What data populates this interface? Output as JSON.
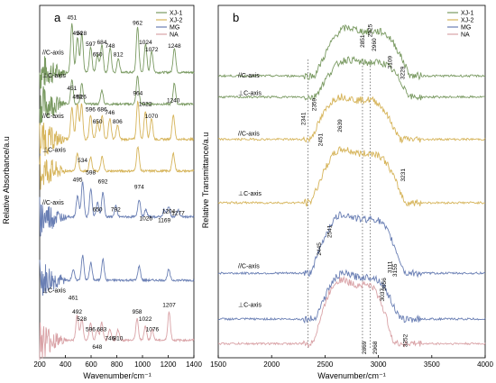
{
  "colors": {
    "XJ-1": "#7a9a62",
    "XJ-2": "#d6b45a",
    "MG": "#6a7fb4",
    "NA": "#d9a2a6"
  },
  "chart_data": [
    {
      "panel": "a",
      "type": "line",
      "xlabel": "Wavenumber/cm⁻¹",
      "ylabel": "Relative Absorbance/a.u",
      "xlim": [
        200,
        1400
      ],
      "xticks": [
        200,
        400,
        600,
        800,
        1000,
        1200,
        1400
      ],
      "legend": {
        "placement": "top-right",
        "entries": [
          "XJ-1",
          "XJ-2",
          "MG",
          "NA"
        ]
      },
      "orientation_labels": [
        {
          "text": "//C-axis",
          "y_level": 0.86
        },
        {
          "text": "⊥C-axis",
          "y_level": 0.795
        },
        {
          "text": "//C-axis",
          "y_level": 0.68
        },
        {
          "text": "⊥C-axis",
          "y_level": 0.585
        },
        {
          "text": "//C-axis",
          "y_level": 0.435
        },
        {
          "text": "⊥C-axis",
          "y_level": 0.185
        }
      ],
      "series": [
        {
          "key": "XJ-1",
          "orientation": "//C-axis",
          "base": 0.81,
          "peaks": [
            [
              451,
              0.14
            ],
            [
              494,
              0.1
            ],
            [
              528,
              0.11
            ],
            [
              597,
              0.07
            ],
            [
              650,
              0.05
            ],
            [
              684,
              0.08
            ],
            [
              748,
              0.07
            ],
            [
              812,
              0.04
            ],
            [
              962,
              0.13
            ],
            [
              1024,
              0.08
            ],
            [
              1072,
              0.06
            ],
            [
              1248,
              0.07
            ]
          ]
        },
        {
          "key": "XJ-1",
          "orientation": "⊥C-axis",
          "base": 0.72,
          "peaks": [
            [
              451,
              0.07
            ],
            [
              528,
              0.06
            ],
            [
              684,
              0.04
            ],
            [
              962,
              0.08
            ],
            [
              1248,
              0.06
            ]
          ]
        },
        {
          "key": "XJ-2",
          "orientation": "//C-axis",
          "base": 0.62,
          "peaks": [
            [
              451,
              0.09
            ],
            [
              493,
              0.1
            ],
            [
              526,
              0.1
            ],
            [
              596,
              0.07
            ],
            [
              650,
              0.05
            ],
            [
              686,
              0.07
            ],
            [
              746,
              0.06
            ],
            [
              806,
              0.04
            ],
            [
              964,
              0.11
            ],
            [
              1022,
              0.08
            ],
            [
              1070,
              0.06
            ],
            [
              1240,
              0.07
            ]
          ]
        },
        {
          "key": "XJ-2",
          "orientation": "⊥C-axis",
          "base": 0.53,
          "peaks": [
            [
              493,
              0.05
            ],
            [
              596,
              0.04
            ],
            [
              686,
              0.04
            ],
            [
              964,
              0.07
            ],
            [
              1240,
              0.05
            ]
          ]
        },
        {
          "key": "MG",
          "orientation": "//C-axis",
          "base": 0.4,
          "peaks": [
            [
              495,
              0.06
            ],
            [
              534,
              0.1
            ],
            [
              598,
              0.08
            ],
            [
              650,
              0.04
            ],
            [
              692,
              0.07
            ],
            [
              792,
              0.03
            ],
            [
              974,
              0.05
            ],
            [
              1026,
              0.02
            ],
            [
              1169,
              0.02
            ],
            [
              1204,
              0.03
            ],
            [
              1277,
              0.02
            ]
          ]
        },
        {
          "key": "MG",
          "orientation": "⊥C-axis",
          "base": 0.22,
          "peaks": [
            [
              461,
              0.03
            ],
            [
              534,
              0.07
            ],
            [
              598,
              0.05
            ],
            [
              692,
              0.06
            ],
            [
              974,
              0.04
            ],
            [
              1204,
              0.03
            ]
          ]
        },
        {
          "key": "NA",
          "orientation": "",
          "base": 0.05,
          "peaks": [
            [
              492,
              0.07
            ],
            [
              528,
              0.06
            ],
            [
              596,
              0.05
            ],
            [
              648,
              0.03
            ],
            [
              683,
              0.05
            ],
            [
              746,
              0.03
            ],
            [
              810,
              0.03
            ],
            [
              958,
              0.06
            ],
            [
              1022,
              0.04
            ],
            [
              1076,
              0.03
            ],
            [
              1207,
              0.08
            ]
          ]
        }
      ],
      "annotations": [
        {
          "text": "451",
          "x": 451,
          "y_level": 0.96
        },
        {
          "text": "494",
          "x": 494,
          "y_level": 0.915
        },
        {
          "text": "528",
          "x": 528,
          "y_level": 0.915
        },
        {
          "text": "597",
          "x": 597,
          "y_level": 0.885
        },
        {
          "text": "650",
          "x": 650,
          "y_level": 0.855
        },
        {
          "text": "684",
          "x": 684,
          "y_level": 0.89
        },
        {
          "text": "748",
          "x": 748,
          "y_level": 0.88
        },
        {
          "text": "812",
          "x": 812,
          "y_level": 0.855
        },
        {
          "text": "962",
          "x": 962,
          "y_level": 0.945
        },
        {
          "text": "1024",
          "x": 1024,
          "y_level": 0.89
        },
        {
          "text": "1072",
          "x": 1072,
          "y_level": 0.87
        },
        {
          "text": "1248",
          "x": 1248,
          "y_level": 0.88
        },
        {
          "text": "451",
          "x": 451,
          "y_level": 0.76
        },
        {
          "text": "493",
          "x": 493,
          "y_level": 0.735
        },
        {
          "text": "526",
          "x": 526,
          "y_level": 0.735
        },
        {
          "text": "596",
          "x": 596,
          "y_level": 0.7
        },
        {
          "text": "650",
          "x": 650,
          "y_level": 0.665
        },
        {
          "text": "686",
          "x": 686,
          "y_level": 0.7
        },
        {
          "text": "746",
          "x": 746,
          "y_level": 0.69
        },
        {
          "text": "806",
          "x": 806,
          "y_level": 0.665
        },
        {
          "text": "964",
          "x": 964,
          "y_level": 0.745
        },
        {
          "text": "1022",
          "x": 1022,
          "y_level": 0.715
        },
        {
          "text": "1070",
          "x": 1070,
          "y_level": 0.68
        },
        {
          "text": "1240",
          "x": 1240,
          "y_level": 0.725
        },
        {
          "text": "534",
          "x": 534,
          "y_level": 0.555
        },
        {
          "text": "598",
          "x": 598,
          "y_level": 0.52
        },
        {
          "text": "495",
          "x": 495,
          "y_level": 0.5
        },
        {
          "text": "692",
          "x": 692,
          "y_level": 0.495
        },
        {
          "text": "650",
          "x": 650,
          "y_level": 0.415
        },
        {
          "text": "792",
          "x": 792,
          "y_level": 0.415
        },
        {
          "text": "974",
          "x": 974,
          "y_level": 0.48
        },
        {
          "text": "1026",
          "x": 1026,
          "y_level": 0.39
        },
        {
          "text": "1169",
          "x": 1169,
          "y_level": 0.385
        },
        {
          "text": "1204",
          "x": 1204,
          "y_level": 0.41
        },
        {
          "text": "1277",
          "x": 1277,
          "y_level": 0.405
        },
        {
          "text": "461",
          "x": 461,
          "y_level": 0.165
        },
        {
          "text": "492",
          "x": 492,
          "y_level": 0.125
        },
        {
          "text": "528",
          "x": 528,
          "y_level": 0.105
        },
        {
          "text": "596",
          "x": 596,
          "y_level": 0.075
        },
        {
          "text": "683",
          "x": 683,
          "y_level": 0.075
        },
        {
          "text": "648",
          "x": 648,
          "y_level": 0.025
        },
        {
          "text": "746",
          "x": 746,
          "y_level": 0.05
        },
        {
          "text": "810",
          "x": 810,
          "y_level": 0.05
        },
        {
          "text": "958",
          "x": 958,
          "y_level": 0.125
        },
        {
          "text": "1022",
          "x": 1022,
          "y_level": 0.105
        },
        {
          "text": "1076",
          "x": 1076,
          "y_level": 0.075
        },
        {
          "text": "1207",
          "x": 1207,
          "y_level": 0.145
        }
      ]
    },
    {
      "panel": "b",
      "type": "line",
      "xlabel": "Wavenumber/cm⁻¹",
      "ylabel": "Relative Transmittance/a.u",
      "xlim": [
        1500,
        4000
      ],
      "xticks": [
        1500,
        2000,
        2500,
        3000,
        3500,
        4000
      ],
      "legend": {
        "placement": "top-right",
        "entries": [
          "XJ-1",
          "XJ-2",
          "MG",
          "NA"
        ]
      },
      "dotted_lines_x": [
        2341,
        2851,
        2925
      ],
      "orientation_labels": [
        {
          "text": "//C-axis",
          "y_level": 0.795
        },
        {
          "text": "⊥C-axis",
          "y_level": 0.745
        },
        {
          "text": "//C-axis",
          "y_level": 0.63
        },
        {
          "text": "⊥C-axis",
          "y_level": 0.46
        },
        {
          "text": "//C-axis",
          "y_level": 0.255
        },
        {
          "text": "⊥C-axis",
          "y_level": 0.145
        }
      ],
      "series": [
        {
          "key": "XJ-1",
          "orientation": "//C-axis",
          "base": 0.8,
          "hump": [
            2400,
            3300,
            0.18
          ]
        },
        {
          "key": "XJ-1",
          "orientation": "⊥C-axis",
          "base": 0.74,
          "hump": [
            2400,
            3300,
            0.14
          ]
        },
        {
          "key": "XJ-2",
          "orientation": "//C-axis",
          "base": 0.62,
          "hump": [
            2360,
            3200,
            0.16
          ]
        },
        {
          "key": "XJ-2",
          "orientation": "⊥C-axis",
          "base": 0.44,
          "hump": [
            2360,
            3250,
            0.2
          ]
        },
        {
          "key": "MG",
          "orientation": "//C-axis",
          "base": 0.24,
          "hump": [
            2360,
            3250,
            0.22
          ]
        },
        {
          "key": "MG",
          "orientation": "⊥C-axis",
          "base": 0.11,
          "hump": [
            2400,
            3200,
            0.17
          ]
        },
        {
          "key": "NA",
          "orientation": "",
          "base": 0.04,
          "hump": [
            2380,
            3150,
            0.24
          ]
        }
      ],
      "annotations": [
        {
          "text": "2925",
          "x": 2925,
          "y_level": 0.91
        },
        {
          "text": "2851",
          "x": 2851,
          "y_level": 0.88
        },
        {
          "text": "2960",
          "x": 2960,
          "y_level": 0.87
        },
        {
          "text": "3109",
          "x": 3109,
          "y_level": 0.82
        },
        {
          "text": "3229",
          "x": 3229,
          "y_level": 0.79
        },
        {
          "text": "2341",
          "x": 2300,
          "y_level": 0.66
        },
        {
          "text": "2359",
          "x": 2400,
          "y_level": 0.7
        },
        {
          "text": "2451",
          "x": 2460,
          "y_level": 0.6
        },
        {
          "text": "2639",
          "x": 2639,
          "y_level": 0.64
        },
        {
          "text": "3231",
          "x": 3231,
          "y_level": 0.5
        },
        {
          "text": "2541",
          "x": 2541,
          "y_level": 0.34
        },
        {
          "text": "2445",
          "x": 2445,
          "y_level": 0.29
        },
        {
          "text": "3111",
          "x": 3111,
          "y_level": 0.24
        },
        {
          "text": "3155",
          "x": 3155,
          "y_level": 0.23
        },
        {
          "text": "3037",
          "x": 3037,
          "y_level": 0.16
        },
        {
          "text": "3056",
          "x": 3056,
          "y_level": 0.19
        },
        {
          "text": "2869",
          "x": 2869,
          "y_level": 0.01
        },
        {
          "text": "2968",
          "x": 2968,
          "y_level": 0.01
        },
        {
          "text": "3252",
          "x": 3252,
          "y_level": 0.03
        }
      ]
    }
  ]
}
